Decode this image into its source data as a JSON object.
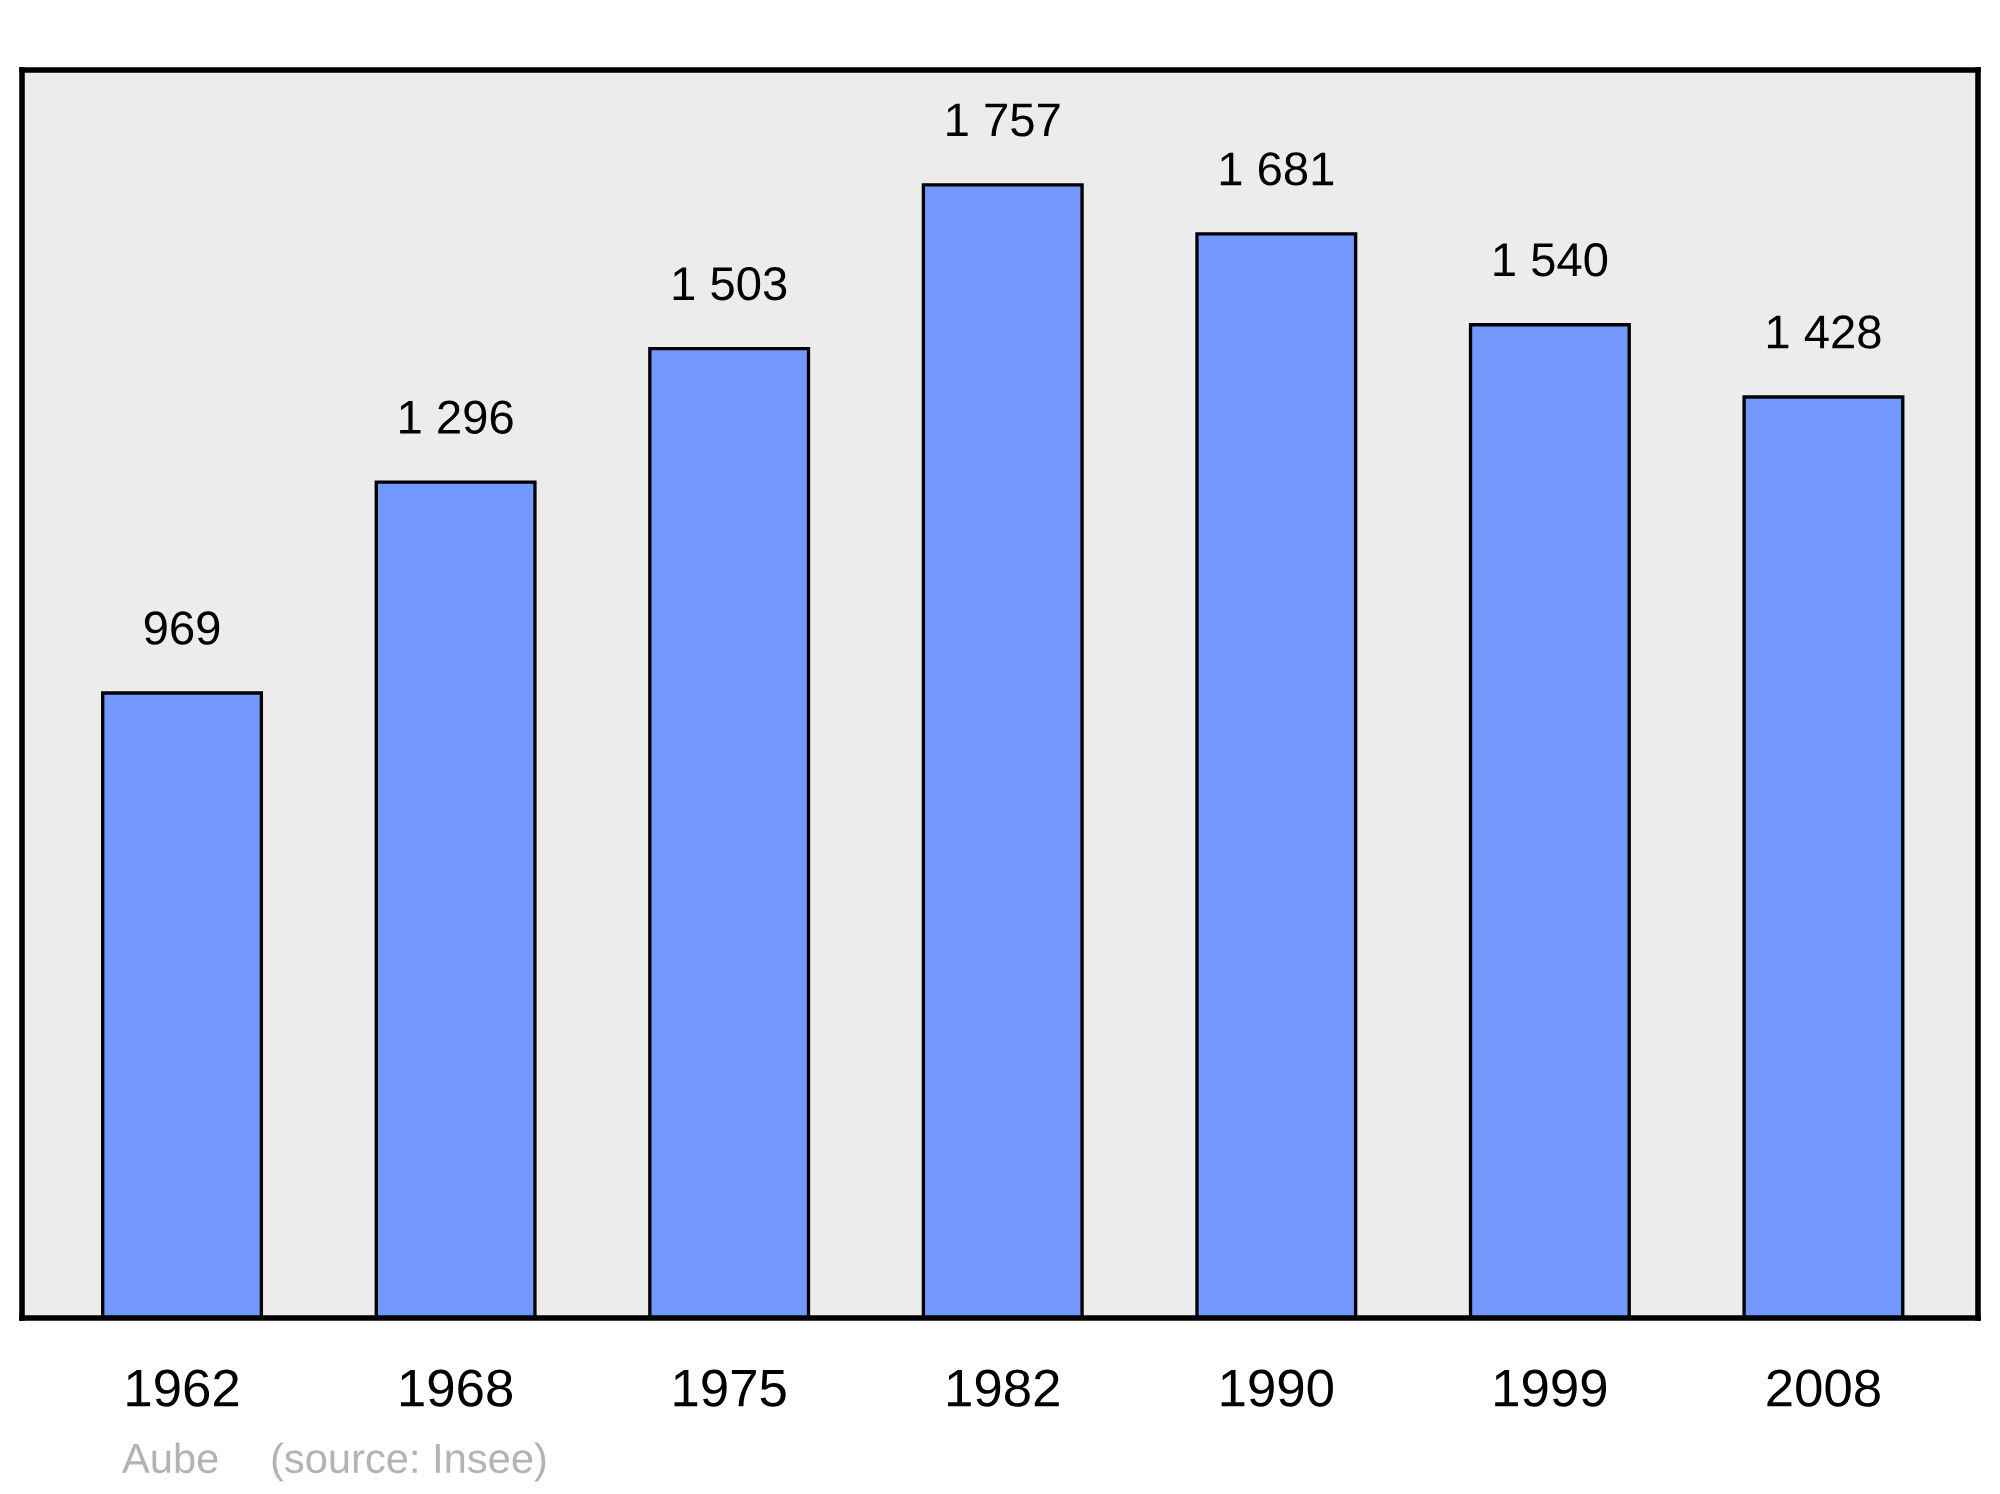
{
  "chart_data": {
    "type": "bar",
    "categories": [
      "1962",
      "1968",
      "1975",
      "1982",
      "1990",
      "1999",
      "2008"
    ],
    "values": [
      969,
      1296,
      1503,
      1757,
      1681,
      1540,
      1428
    ],
    "value_labels": [
      "969",
      "1 296",
      "1 503",
      "1 757",
      "1 681",
      "1 540",
      "1 428"
    ],
    "color": "#7399ff",
    "ylim": [
      0,
      1935
    ],
    "tick_labels": "x",
    "grid": false,
    "annotations": [
      "Aube",
      "(source: Insee)"
    ]
  }
}
